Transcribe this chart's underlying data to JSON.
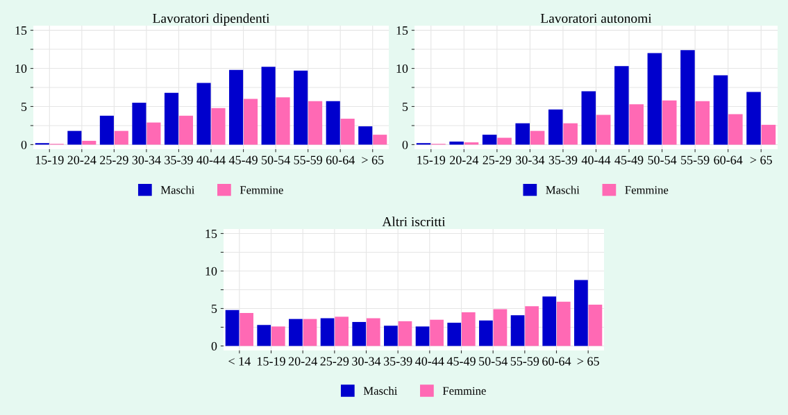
{
  "chart_data": [
    {
      "type": "bar",
      "title": "Lavoratori dipendenti",
      "categories": [
        "15-19",
        "20-24",
        "25-29",
        "30-34",
        "35-39",
        "40-44",
        "45-49",
        "50-54",
        "55-59",
        "60-64",
        "> 65"
      ],
      "series": [
        {
          "name": "Maschi",
          "color": "#0000cd",
          "values": [
            0.2,
            1.8,
            3.8,
            5.5,
            6.8,
            8.1,
            9.8,
            10.2,
            9.7,
            5.7,
            2.4
          ]
        },
        {
          "name": "Femmine",
          "color": "#ff69b4",
          "values": [
            0.1,
            0.5,
            1.8,
            2.9,
            3.8,
            4.8,
            6.0,
            6.2,
            5.7,
            3.4,
            1.3
          ]
        }
      ],
      "ylim": [
        -0.6,
        15.6
      ],
      "yticks": [
        0,
        {
          "value": 2.5,
          "label": null
        },
        5,
        {
          "value": 7.5,
          "label": null
        },
        10,
        {
          "value": 12.5,
          "label": null
        },
        15
      ],
      "grid": true,
      "legend": "bottom"
    },
    {
      "type": "bar",
      "title": "Lavoratori autonomi",
      "categories": [
        "15-19",
        "20-24",
        "25-29",
        "30-34",
        "35-39",
        "40-44",
        "45-49",
        "50-54",
        "55-59",
        "60-64",
        "> 65"
      ],
      "series": [
        {
          "name": "Maschi",
          "color": "#0000cd",
          "values": [
            0.2,
            0.4,
            1.3,
            2.8,
            4.6,
            7.0,
            10.3,
            12.0,
            12.4,
            9.1,
            6.9
          ]
        },
        {
          "name": "Femmine",
          "color": "#ff69b4",
          "values": [
            0.1,
            0.3,
            0.9,
            1.8,
            2.8,
            3.9,
            5.3,
            5.8,
            5.7,
            4.0,
            2.6
          ]
        }
      ],
      "ylim": [
        -0.6,
        15.6
      ],
      "yticks": [
        0,
        {
          "value": 2.5,
          "label": null
        },
        5,
        {
          "value": 7.5,
          "label": null
        },
        10,
        {
          "value": 12.5,
          "label": null
        },
        15
      ],
      "grid": true,
      "legend": "bottom"
    },
    {
      "type": "bar",
      "title": "Altri iscritti",
      "categories": [
        "< 14",
        "15-19",
        "20-24",
        "25-29",
        "30-34",
        "35-39",
        "40-44",
        "45-49",
        "50-54",
        "55-59",
        "60-64",
        "> 65"
      ],
      "series": [
        {
          "name": "Maschi",
          "color": "#0000cd",
          "values": [
            4.8,
            2.8,
            3.6,
            3.7,
            3.2,
            2.7,
            2.6,
            3.1,
            3.4,
            4.1,
            6.6,
            8.8
          ]
        },
        {
          "name": "Femmine",
          "color": "#ff69b4",
          "values": [
            4.4,
            2.6,
            3.6,
            3.9,
            3.7,
            3.3,
            3.5,
            4.5,
            4.9,
            5.3,
            5.9,
            5.5
          ]
        }
      ],
      "ylim": [
        -0.6,
        15.6
      ],
      "yticks": [
        0,
        {
          "value": 2.5,
          "label": null
        },
        5,
        {
          "value": 7.5,
          "label": null
        },
        10,
        {
          "value": 12.5,
          "label": null
        },
        15
      ],
      "grid": true,
      "legend": "bottom"
    }
  ]
}
